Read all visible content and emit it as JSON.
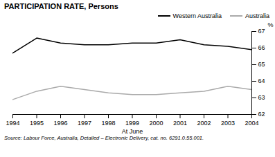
{
  "chart_data": {
    "type": "line",
    "title": "PARTICIPATION RATE, Persons",
    "xlabel": "At June",
    "ylabel": "%",
    "caption": "Source: Labour Force, Australia, Detailed – Electronic Delivery, cat. no. 6291.0.55.001.",
    "x": [
      1994,
      1995,
      1996,
      1997,
      1998,
      1999,
      2000,
      2001,
      2002,
      2003,
      2004
    ],
    "series": [
      {
        "name": "Western Australia",
        "color": "#000000",
        "values": [
          65.7,
          66.6,
          66.3,
          66.2,
          66.2,
          66.3,
          66.3,
          66.5,
          66.2,
          66.1,
          65.9
        ]
      },
      {
        "name": "Australia",
        "color": "#aaaaaa",
        "values": [
          62.9,
          63.4,
          63.7,
          63.5,
          63.3,
          63.2,
          63.2,
          63.3,
          63.4,
          63.7,
          63.5
        ]
      }
    ],
    "xlim": [
      1994,
      2004
    ],
    "xticks": [
      1994,
      1995,
      1996,
      1997,
      1998,
      1999,
      2000,
      2001,
      2002,
      2003,
      2004
    ],
    "ylim": [
      62,
      67
    ],
    "yticks": [
      62,
      63,
      64,
      65,
      66,
      67
    ],
    "legend": "upper right",
    "grid": false
  }
}
